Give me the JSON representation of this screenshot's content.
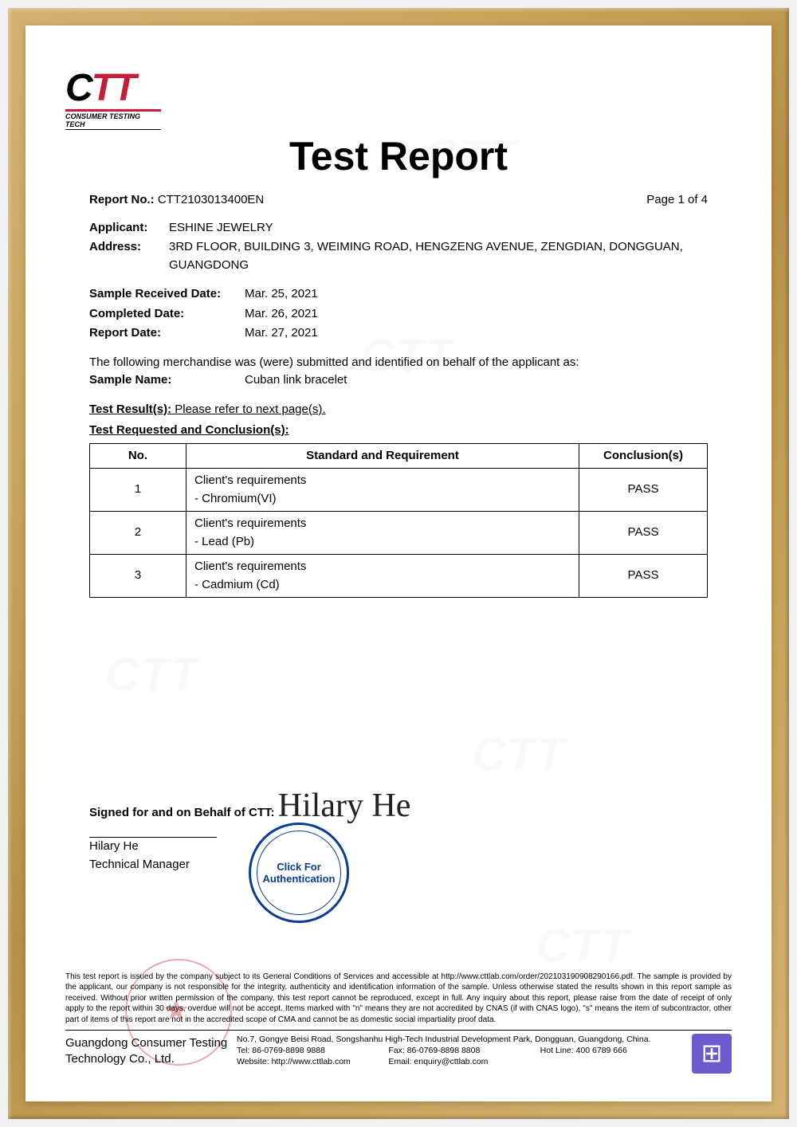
{
  "logo": {
    "c": "C",
    "t1": "T",
    "t2": "T",
    "sub": "CONSUMER TESTING TECH"
  },
  "title": "Test Report",
  "header": {
    "report_no_label": "Report No.:",
    "report_no": "CTT2103013400EN",
    "page_info": "Page 1 of 4"
  },
  "applicant": {
    "label": "Applicant:",
    "value": "ESHINE JEWELRY",
    "address_label": "Address:",
    "address": "3RD FLOOR, BUILDING 3, WEIMING ROAD, HENGZENG AVENUE, ZENGDIAN, DONGGUAN, GUANGDONG"
  },
  "dates": {
    "received_label": "Sample Received Date:",
    "received": "Mar. 25, 2021",
    "completed_label": "Completed Date:",
    "completed": "Mar. 26, 2021",
    "report_label": "Report Date:",
    "report": "Mar. 27, 2021"
  },
  "sample": {
    "intro": "The following merchandise was (were) submitted and identified on behalf of the applicant as:",
    "name_label": "Sample Name:",
    "name": "Cuban link bracelet"
  },
  "results": {
    "result_label": "Test Result(s):",
    "result_text": " Please refer to next page(s).",
    "requested_label": "Test Requested and Conclusion(s):"
  },
  "table": {
    "headers": {
      "no": "No.",
      "std": "Standard and Requirement",
      "conc": "Conclusion(s)"
    },
    "rows": [
      {
        "no": "1",
        "std1": "Client's requirements",
        "std2": "- Chromium(VI)",
        "conc": "PASS"
      },
      {
        "no": "2",
        "std1": "Client's requirements",
        "std2": "- Lead (Pb)",
        "conc": "PASS"
      },
      {
        "no": "3",
        "std1": "Client's requirements",
        "std2": "- Cadmium (Cd)",
        "conc": "PASS"
      }
    ]
  },
  "signature": {
    "heading": "Signed for and on Behalf of CTT:",
    "sign": "Hilary He",
    "name": "Hilary He",
    "title": "Technical Manager"
  },
  "stamp": {
    "line1": "Click For",
    "line2": "Authentication"
  },
  "footer": {
    "text": "This test report is issued by the company subject to its General Conditions of Services and accessible at http://www.cttlab.com/order/202103190908290166.pdf. The sample is provided by the applicant, our company is not responsible for the integrity, authenticity and identification information of the sample. Unless otherwise stated the results shown in this report sample as received. Without prior written permission of the company, this test report cannot be reproduced, except in full. Any inquiry about this report, please raise from the date of receipt of only apply to the report within 30 days, overdue will not be accept. Items marked with \"n\" means they are not accredited by CNAS (if with CNAS logo), \"s\" means the item of subcontractor, other part of items of this report are not in the accredited scope of CMA and cannot be as domestic social impartiality proof data.",
    "company": "Guangdong Consumer Testing Technology Co., Ltd.",
    "addr": "No.7, Gongye Beisi Road, Songshanhu High-Tech Industrial Development Park, Dongguan, Guangdong, China.",
    "tel": "Tel: 86-0769-8898 9888",
    "fax": "Fax: 86-0769-8898 8808",
    "hotline": "Hot Line: 400 6789 666",
    "web": "Website: http://www.cttlab.com",
    "email": "Email: enquiry@cttlab.com"
  }
}
